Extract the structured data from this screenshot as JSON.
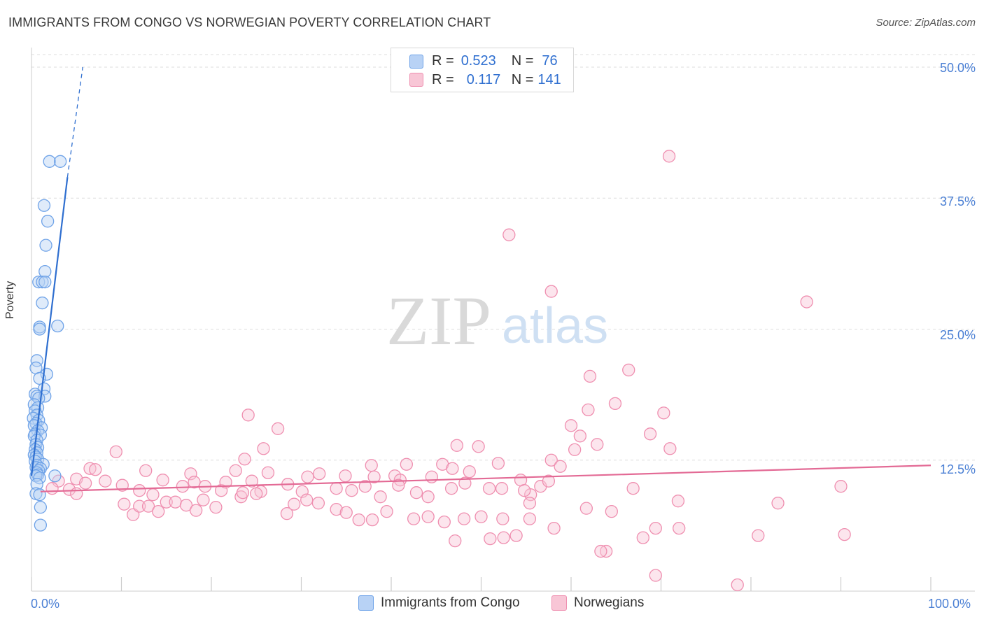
{
  "title": "IMMIGRANTS FROM CONGO VS NORWEGIAN POVERTY CORRELATION CHART",
  "source": "Source: ZipAtlas.com",
  "watermark": {
    "zip": "ZIP",
    "atlas": "atlas"
  },
  "legend": {
    "r_label": "R =",
    "n_label": "N =",
    "rows": [
      {
        "name": "Immigrants from Congo",
        "r": "0.523",
        "n": "76",
        "color": "#6fa3e8",
        "fill": "#b8d2f5"
      },
      {
        "name": "Norwegians",
        "r": "0.117",
        "n": "141",
        "color": "#ef8fb0",
        "fill": "#f8c6d6"
      }
    ]
  },
  "chart_data": {
    "type": "scatter",
    "title": "IMMIGRANTS FROM CONGO VS NORWEGIAN POVERTY CORRELATION CHART",
    "xlabel": "",
    "ylabel": "Poverty",
    "xlim": [
      0,
      100
    ],
    "ylim": [
      0,
      50
    ],
    "x_tick_labels": [
      "0.0%",
      "100.0%"
    ],
    "y_ticks": [
      12.5,
      25.0,
      37.5,
      50.0
    ],
    "y_tick_labels": [
      "12.5%",
      "25.0%",
      "37.5%",
      "50.0%"
    ],
    "grid": true,
    "series": [
      {
        "name": "Immigrants from Congo",
        "color": "#6fa3e8",
        "trend": {
          "x": [
            0.0,
            4.0
          ],
          "y": [
            11.0,
            39.5
          ],
          "dashed_to": [
            5.7,
            50.0
          ]
        },
        "points": [
          [
            2.0,
            41.0
          ],
          [
            3.2,
            41.0
          ],
          [
            1.4,
            36.8
          ],
          [
            1.8,
            35.3
          ],
          [
            1.6,
            33.0
          ],
          [
            1.5,
            30.5
          ],
          [
            0.8,
            29.5
          ],
          [
            1.2,
            29.5
          ],
          [
            1.5,
            29.5
          ],
          [
            1.2,
            27.5
          ],
          [
            0.9,
            25.2
          ],
          [
            0.9,
            25.0
          ],
          [
            2.9,
            25.3
          ],
          [
            0.6,
            22.0
          ],
          [
            0.5,
            21.3
          ],
          [
            1.7,
            20.7
          ],
          [
            0.9,
            20.3
          ],
          [
            1.4,
            19.3
          ],
          [
            0.4,
            18.8
          ],
          [
            0.6,
            18.6
          ],
          [
            1.5,
            18.6
          ],
          [
            0.8,
            18.4
          ],
          [
            0.3,
            17.8
          ],
          [
            0.7,
            17.5
          ],
          [
            0.4,
            17.2
          ],
          [
            0.6,
            16.8
          ],
          [
            0.2,
            16.5
          ],
          [
            0.8,
            16.3
          ],
          [
            0.5,
            16.0
          ],
          [
            0.3,
            15.8
          ],
          [
            1.1,
            15.6
          ],
          [
            0.7,
            15.3
          ],
          [
            0.4,
            15.0
          ],
          [
            1.0,
            14.9
          ],
          [
            0.3,
            14.8
          ],
          [
            0.6,
            14.4
          ],
          [
            0.5,
            14.0
          ],
          [
            0.7,
            13.7
          ],
          [
            0.4,
            13.5
          ],
          [
            0.6,
            13.2
          ],
          [
            0.3,
            13.0
          ],
          [
            0.5,
            12.8
          ],
          [
            0.7,
            12.6
          ],
          [
            0.4,
            12.4
          ],
          [
            1.3,
            12.1
          ],
          [
            0.6,
            12.0
          ],
          [
            0.5,
            11.8
          ],
          [
            1.0,
            11.7
          ],
          [
            0.8,
            11.5
          ],
          [
            0.6,
            11.3
          ],
          [
            0.7,
            11.1
          ],
          [
            0.5,
            11.0
          ],
          [
            2.6,
            11.0
          ],
          [
            0.9,
            10.8
          ],
          [
            0.6,
            10.2
          ],
          [
            0.5,
            9.3
          ],
          [
            0.9,
            9.2
          ],
          [
            1.0,
            8.0
          ],
          [
            1.0,
            6.3
          ]
        ]
      },
      {
        "name": "Norwegians",
        "color": "#ef8fb0",
        "trend": {
          "x": [
            1.0,
            100.0
          ],
          "y": [
            9.5,
            12.0
          ]
        },
        "points": [
          [
            70.9,
            41.5
          ],
          [
            53.1,
            34.0
          ],
          [
            57.8,
            28.6
          ],
          [
            86.2,
            27.6
          ],
          [
            62.1,
            20.5
          ],
          [
            66.4,
            21.1
          ],
          [
            61.9,
            17.3
          ],
          [
            70.3,
            17.0
          ],
          [
            24.1,
            16.8
          ],
          [
            27.4,
            15.5
          ],
          [
            60.0,
            15.8
          ],
          [
            68.8,
            15.0
          ],
          [
            61.0,
            14.8
          ],
          [
            62.9,
            14.0
          ],
          [
            49.7,
            13.8
          ],
          [
            71.0,
            13.6
          ],
          [
            60.4,
            13.5
          ],
          [
            9.4,
            13.3
          ],
          [
            25.8,
            13.6
          ],
          [
            23.7,
            12.6
          ],
          [
            45.7,
            12.1
          ],
          [
            57.8,
            12.5
          ],
          [
            51.9,
            12.2
          ],
          [
            37.8,
            12.0
          ],
          [
            41.7,
            12.1
          ],
          [
            46.8,
            11.7
          ],
          [
            6.5,
            11.7
          ],
          [
            7.1,
            11.6
          ],
          [
            17.7,
            11.2
          ],
          [
            12.7,
            11.5
          ],
          [
            22.7,
            11.5
          ],
          [
            26.3,
            11.3
          ],
          [
            30.7,
            10.9
          ],
          [
            32.0,
            11.2
          ],
          [
            34.9,
            11.0
          ],
          [
            38.1,
            10.9
          ],
          [
            40.4,
            11.0
          ],
          [
            41.0,
            10.6
          ],
          [
            44.5,
            10.9
          ],
          [
            48.7,
            11.4
          ],
          [
            54.4,
            10.6
          ],
          [
            56.6,
            10.0
          ],
          [
            55.5,
            9.2
          ],
          [
            57.5,
            10.5
          ],
          [
            66.9,
            9.8
          ],
          [
            5.0,
            10.7
          ],
          [
            6.0,
            10.3
          ],
          [
            4.2,
            9.7
          ],
          [
            3.0,
            10.5
          ],
          [
            2.3,
            9.8
          ],
          [
            8.2,
            10.5
          ],
          [
            10.1,
            10.1
          ],
          [
            12.0,
            9.6
          ],
          [
            13.5,
            9.2
          ],
          [
            14.6,
            10.6
          ],
          [
            16.8,
            10.0
          ],
          [
            18.1,
            10.4
          ],
          [
            19.3,
            10.0
          ],
          [
            21.1,
            9.6
          ],
          [
            21.6,
            10.4
          ],
          [
            23.3,
            9.0
          ],
          [
            24.5,
            10.5
          ],
          [
            25.5,
            9.5
          ],
          [
            28.5,
            10.2
          ],
          [
            30.1,
            9.5
          ],
          [
            33.9,
            9.8
          ],
          [
            35.6,
            9.6
          ],
          [
            37.1,
            10.0
          ],
          [
            38.8,
            9.0
          ],
          [
            40.8,
            10.1
          ],
          [
            42.8,
            9.4
          ],
          [
            44.1,
            9.0
          ],
          [
            46.7,
            9.8
          ],
          [
            48.2,
            10.3
          ],
          [
            50.9,
            9.8
          ],
          [
            52.3,
            9.8
          ],
          [
            54.8,
            9.6
          ],
          [
            55.4,
            8.4
          ],
          [
            71.9,
            8.6
          ],
          [
            83.0,
            8.4
          ],
          [
            5.0,
            9.3
          ],
          [
            10.3,
            8.3
          ],
          [
            11.3,
            7.3
          ],
          [
            12.0,
            8.1
          ],
          [
            13.0,
            8.1
          ],
          [
            14.1,
            7.6
          ],
          [
            15.0,
            8.5
          ],
          [
            16.0,
            8.5
          ],
          [
            17.2,
            8.2
          ],
          [
            18.3,
            7.7
          ],
          [
            19.1,
            8.7
          ],
          [
            20.5,
            8.0
          ],
          [
            23.5,
            9.4
          ],
          [
            25.0,
            9.3
          ],
          [
            28.4,
            7.4
          ],
          [
            29.2,
            8.3
          ],
          [
            30.6,
            8.7
          ],
          [
            31.9,
            8.4
          ],
          [
            33.9,
            7.8
          ],
          [
            35.0,
            7.5
          ],
          [
            36.4,
            6.8
          ],
          [
            37.9,
            6.8
          ],
          [
            39.5,
            7.6
          ],
          [
            42.5,
            6.9
          ],
          [
            44.1,
            7.1
          ],
          [
            45.9,
            6.6
          ],
          [
            48.1,
            6.9
          ],
          [
            50.0,
            7.1
          ],
          [
            52.4,
            6.9
          ],
          [
            55.4,
            6.9
          ],
          [
            58.1,
            6.0
          ],
          [
            61.7,
            7.9
          ],
          [
            64.5,
            7.6
          ],
          [
            69.4,
            6.0
          ],
          [
            72.0,
            6.0
          ],
          [
            47.1,
            4.8
          ],
          [
            51.0,
            5.0
          ],
          [
            52.5,
            5.1
          ],
          [
            53.9,
            5.3
          ],
          [
            68.0,
            5.1
          ],
          [
            63.9,
            3.8
          ],
          [
            63.3,
            3.8
          ],
          [
            69.4,
            1.5
          ],
          [
            78.5,
            0.6
          ],
          [
            80.8,
            5.3
          ],
          [
            90.4,
            5.4
          ],
          [
            90.0,
            10.0
          ],
          [
            58.8,
            11.9
          ],
          [
            47.3,
            13.9
          ],
          [
            64.9,
            17.9
          ]
        ]
      }
    ]
  }
}
